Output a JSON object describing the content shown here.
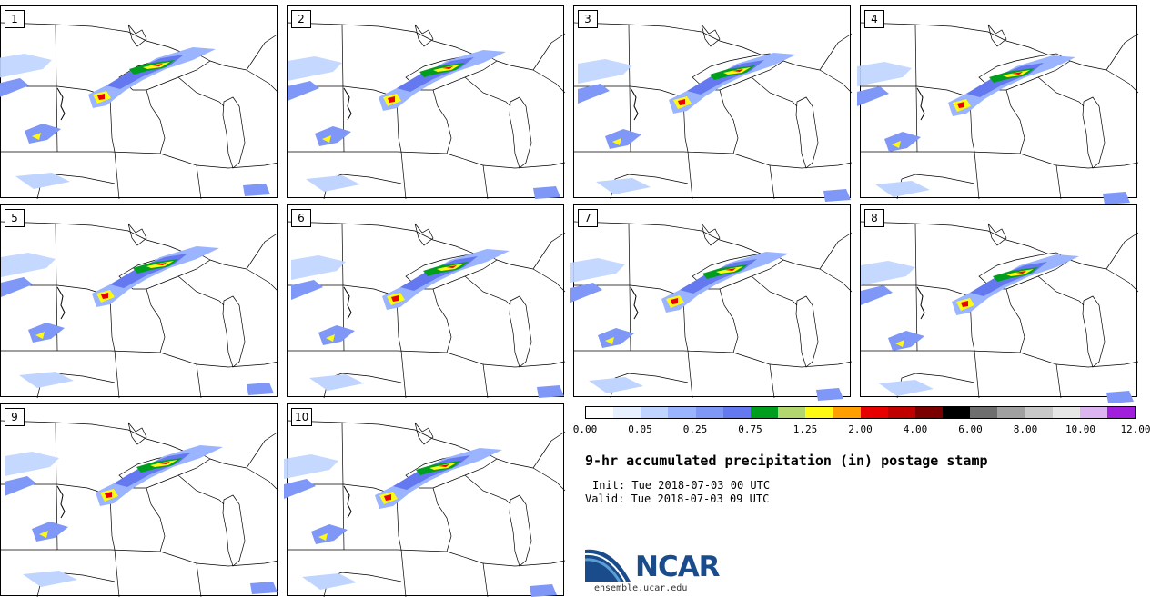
{
  "panels": [
    {
      "label": "1"
    },
    {
      "label": "2"
    },
    {
      "label": "3"
    },
    {
      "label": "4"
    },
    {
      "label": "5"
    },
    {
      "label": "6"
    },
    {
      "label": "7"
    },
    {
      "label": "8"
    },
    {
      "label": "9"
    },
    {
      "label": "10"
    }
  ],
  "colorbar": {
    "colors": [
      "#ffffff",
      "#e6f0ff",
      "#bfd4ff",
      "#9ab4ff",
      "#7f97f6",
      "#6478f0",
      "#009e1e",
      "#b4d66e",
      "#fffa14",
      "#ffa000",
      "#e60000",
      "#c00000",
      "#7a0000",
      "#000000",
      "#6e6e6e",
      "#a0a0a0",
      "#c8c8c8",
      "#e6e6e6",
      "#dcb4f0",
      "#a01edc"
    ],
    "tick_labels": [
      "0.00",
      "0.05",
      "0.25",
      "0.75",
      "1.25",
      "2.00",
      "4.00",
      "6.00",
      "8.00",
      "10.00",
      "12.00"
    ]
  },
  "title": "9-hr accumulated precipitation (in) postage stamp",
  "init": "Init: Tue 2018-07-03 00 UTC",
  "valid": "Valid: Tue 2018-07-03 09 UTC",
  "logo": {
    "text": "NCAR",
    "url": "ensemble.ucar.edu"
  }
}
